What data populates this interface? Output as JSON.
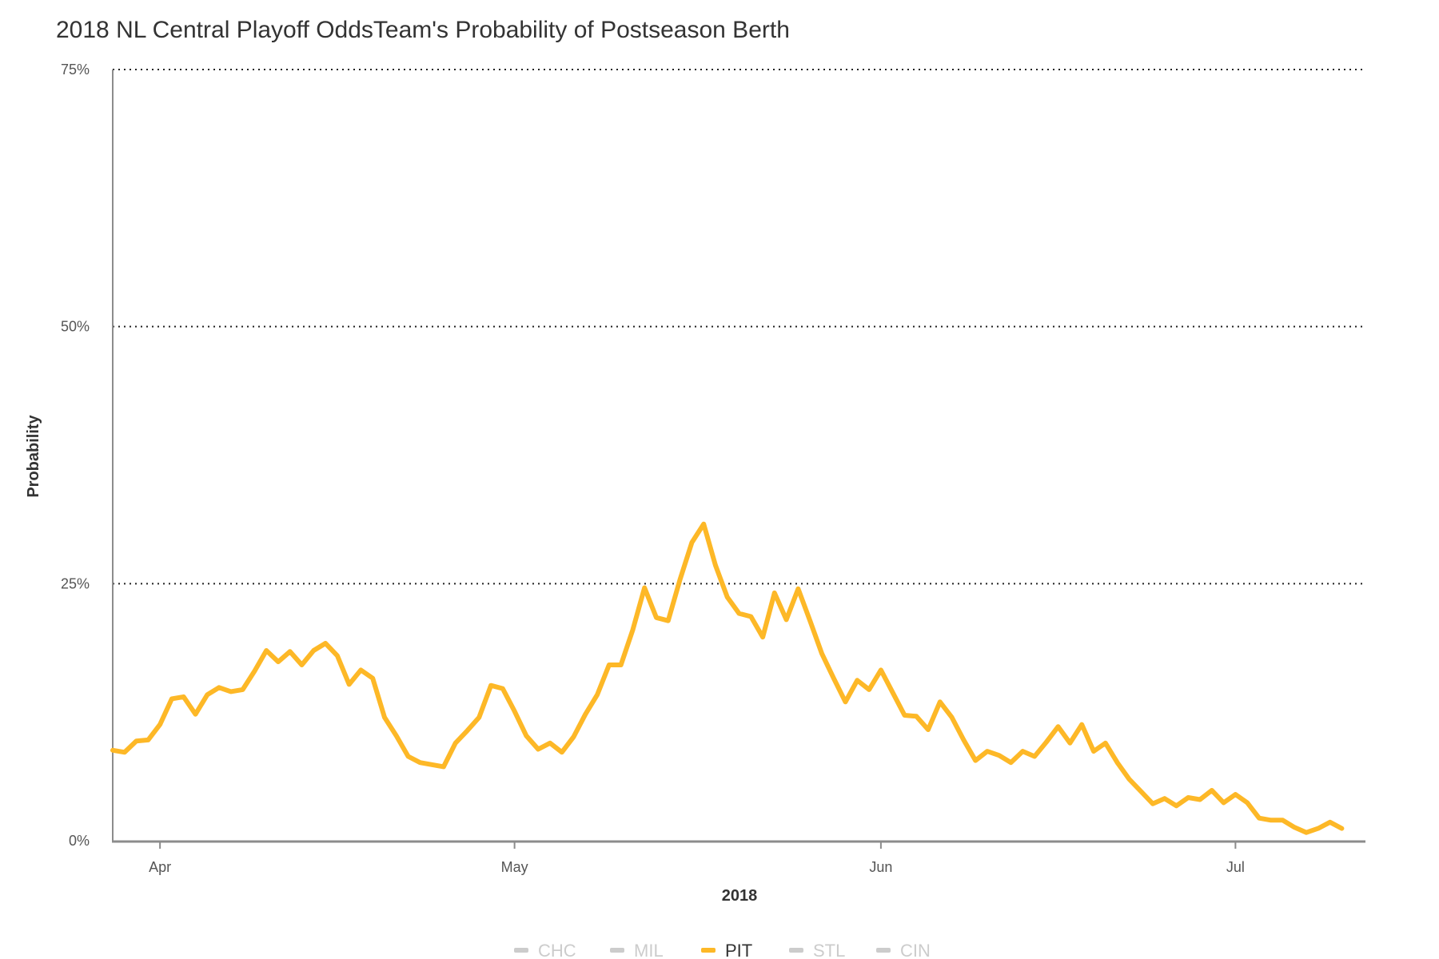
{
  "chart_data": {
    "type": "line",
    "title": "2018 NL Central Playoff OddsTeam's Probability of Postseason Berth",
    "xlabel": "2018",
    "ylabel": "Probability",
    "ylim": [
      0,
      75
    ],
    "yticks": [
      "0%",
      "25%",
      "50%",
      "75%"
    ],
    "ytick_values": [
      0,
      25,
      50,
      75
    ],
    "xticks": [
      {
        "label": "Apr",
        "date": "2018-04-01"
      },
      {
        "label": "May",
        "date": "2018-05-01"
      },
      {
        "label": "Jun",
        "date": "2018-06-01"
      },
      {
        "label": "Jul",
        "date": "2018-07-01"
      }
    ],
    "xlim": [
      "2018-03-28",
      "2018-07-12"
    ],
    "grid": "horizontal dotted",
    "legend_placement": "bottom",
    "legend": [
      {
        "name": "CHC",
        "active": false,
        "color": "#cccccc"
      },
      {
        "name": "MIL",
        "active": false,
        "color": "#cccccc"
      },
      {
        "name": "PIT",
        "active": true,
        "color": "#fdb827"
      },
      {
        "name": "STL",
        "active": false,
        "color": "#cccccc"
      },
      {
        "name": "CIN",
        "active": false,
        "color": "#cccccc"
      }
    ],
    "series": [
      {
        "name": "PIT",
        "color": "#fdb827",
        "points": [
          [
            "2018-03-28",
            8.8
          ],
          [
            "2018-03-29",
            8.6
          ],
          [
            "2018-03-30",
            9.7
          ],
          [
            "2018-03-31",
            9.8
          ],
          [
            "2018-04-01",
            11.3
          ],
          [
            "2018-04-02",
            13.8
          ],
          [
            "2018-04-03",
            14.0
          ],
          [
            "2018-04-04",
            12.3
          ],
          [
            "2018-04-05",
            14.2
          ],
          [
            "2018-04-06",
            14.9
          ],
          [
            "2018-04-07",
            14.5
          ],
          [
            "2018-04-08",
            14.7
          ],
          [
            "2018-04-09",
            16.5
          ],
          [
            "2018-04-10",
            18.5
          ],
          [
            "2018-04-11",
            17.4
          ],
          [
            "2018-04-12",
            18.4
          ],
          [
            "2018-04-13",
            17.1
          ],
          [
            "2018-04-14",
            18.5
          ],
          [
            "2018-04-15",
            19.2
          ],
          [
            "2018-04-16",
            18.0
          ],
          [
            "2018-04-17",
            15.2
          ],
          [
            "2018-04-18",
            16.6
          ],
          [
            "2018-04-19",
            15.8
          ],
          [
            "2018-04-20",
            12.0
          ],
          [
            "2018-04-21",
            10.2
          ],
          [
            "2018-04-22",
            8.2
          ],
          [
            "2018-04-23",
            7.6
          ],
          [
            "2018-04-24",
            7.4
          ],
          [
            "2018-04-25",
            7.2
          ],
          [
            "2018-04-26",
            9.5
          ],
          [
            "2018-04-27",
            10.7
          ],
          [
            "2018-04-28",
            12.0
          ],
          [
            "2018-04-29",
            15.1
          ],
          [
            "2018-04-30",
            14.8
          ],
          [
            "2018-05-01",
            12.6
          ],
          [
            "2018-05-02",
            10.2
          ],
          [
            "2018-05-03",
            8.9
          ],
          [
            "2018-05-04",
            9.5
          ],
          [
            "2018-05-05",
            8.6
          ],
          [
            "2018-05-06",
            10.1
          ],
          [
            "2018-05-07",
            12.3
          ],
          [
            "2018-05-08",
            14.2
          ],
          [
            "2018-05-09",
            17.1
          ],
          [
            "2018-05-10",
            17.1
          ],
          [
            "2018-05-11",
            20.5
          ],
          [
            "2018-05-12",
            24.6
          ],
          [
            "2018-05-13",
            21.7
          ],
          [
            "2018-05-14",
            21.4
          ],
          [
            "2018-05-15",
            25.4
          ],
          [
            "2018-05-16",
            29.0
          ],
          [
            "2018-05-17",
            30.8
          ],
          [
            "2018-05-18",
            26.8
          ],
          [
            "2018-05-19",
            23.7
          ],
          [
            "2018-05-20",
            22.1
          ],
          [
            "2018-05-21",
            21.8
          ],
          [
            "2018-05-22",
            19.8
          ],
          [
            "2018-05-23",
            24.1
          ],
          [
            "2018-05-24",
            21.5
          ],
          [
            "2018-05-25",
            24.5
          ],
          [
            "2018-05-26",
            21.4
          ],
          [
            "2018-05-27",
            18.2
          ],
          [
            "2018-05-28",
            15.8
          ],
          [
            "2018-05-29",
            13.5
          ],
          [
            "2018-05-30",
            15.6
          ],
          [
            "2018-05-31",
            14.7
          ],
          [
            "2018-06-01",
            16.6
          ],
          [
            "2018-06-02",
            14.4
          ],
          [
            "2018-06-03",
            12.2
          ],
          [
            "2018-06-04",
            12.1
          ],
          [
            "2018-06-05",
            10.8
          ],
          [
            "2018-06-06",
            13.5
          ],
          [
            "2018-06-07",
            12.0
          ],
          [
            "2018-06-08",
            9.8
          ],
          [
            "2018-06-09",
            7.8
          ],
          [
            "2018-06-10",
            8.7
          ],
          [
            "2018-06-11",
            8.3
          ],
          [
            "2018-06-12",
            7.6
          ],
          [
            "2018-06-13",
            8.7
          ],
          [
            "2018-06-14",
            8.2
          ],
          [
            "2018-06-15",
            9.6
          ],
          [
            "2018-06-16",
            11.1
          ],
          [
            "2018-06-17",
            9.5
          ],
          [
            "2018-06-18",
            11.3
          ],
          [
            "2018-06-19",
            8.7
          ],
          [
            "2018-06-20",
            9.5
          ],
          [
            "2018-06-21",
            7.6
          ],
          [
            "2018-06-22",
            6.0
          ],
          [
            "2018-06-23",
            4.8
          ],
          [
            "2018-06-24",
            3.6
          ],
          [
            "2018-06-25",
            4.1
          ],
          [
            "2018-06-26",
            3.4
          ],
          [
            "2018-06-27",
            4.2
          ],
          [
            "2018-06-28",
            4.0
          ],
          [
            "2018-06-29",
            4.9
          ],
          [
            "2018-06-30",
            3.7
          ],
          [
            "2018-07-01",
            4.5
          ],
          [
            "2018-07-02",
            3.7
          ],
          [
            "2018-07-03",
            2.2
          ],
          [
            "2018-07-04",
            2.0
          ],
          [
            "2018-07-05",
            2.0
          ],
          [
            "2018-07-06",
            1.3
          ],
          [
            "2018-07-07",
            0.8
          ],
          [
            "2018-07-08",
            1.2
          ],
          [
            "2018-07-09",
            1.8
          ],
          [
            "2018-07-10",
            1.2
          ]
        ]
      }
    ]
  }
}
